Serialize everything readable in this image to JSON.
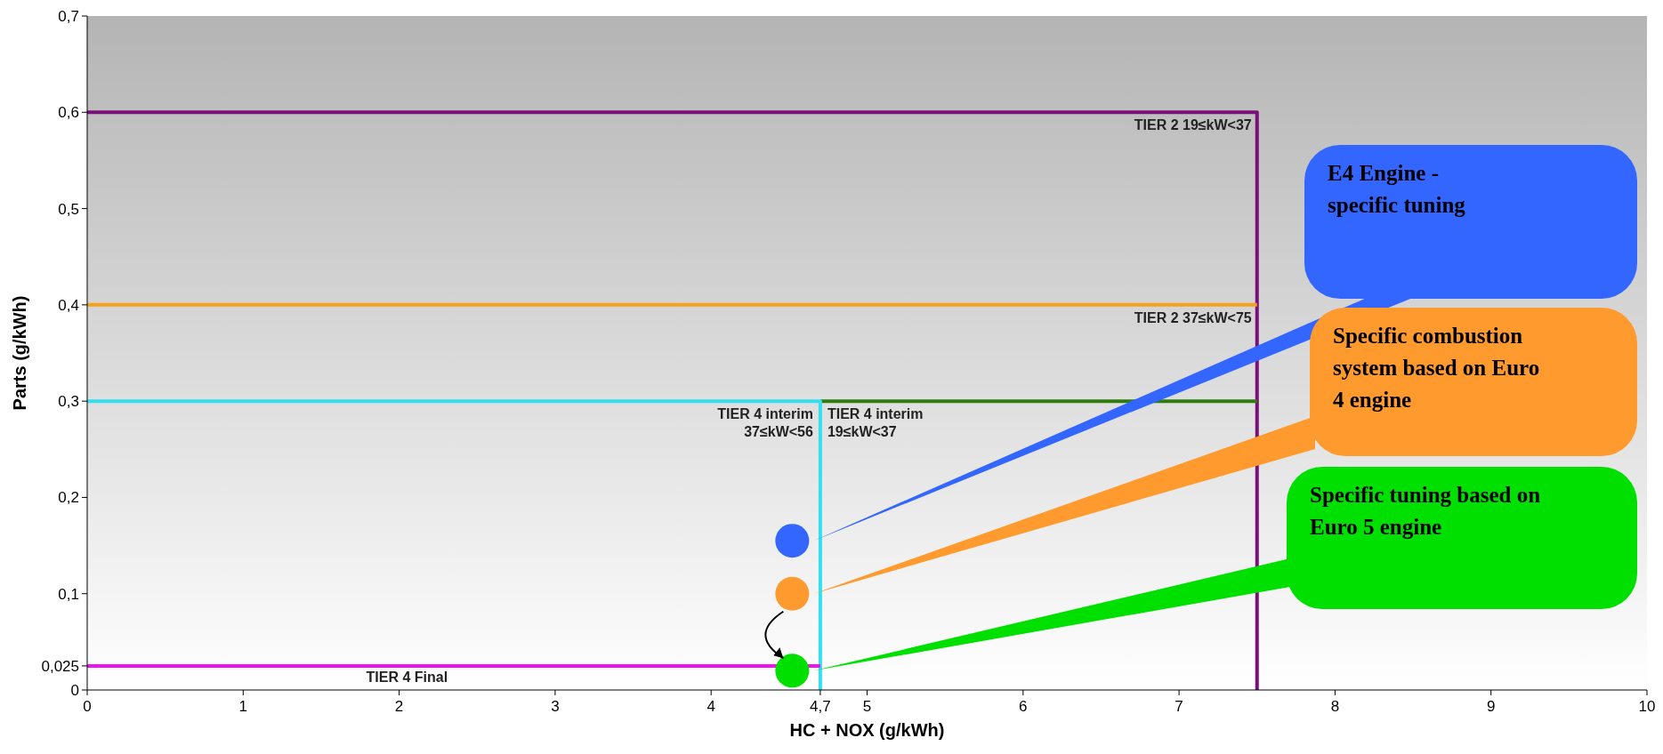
{
  "chart_data": {
    "type": "line",
    "xlabel": "HC + NOX (g/kWh)",
    "ylabel": "Parts (g/kWh)",
    "xlim": [
      0,
      10
    ],
    "ylim": [
      0,
      0.7
    ],
    "xticks": [
      0,
      1,
      2,
      3,
      4,
      {
        "value": 4.7,
        "label": "4,7"
      },
      5,
      6,
      7,
      8,
      9,
      10
    ],
    "yticks": [
      0,
      {
        "value": 0.025,
        "label": "0,025"
      },
      {
        "value": 0.1,
        "label": "0,1"
      },
      {
        "value": 0.2,
        "label": "0,2"
      },
      {
        "value": 0.3,
        "label": "0,3"
      },
      {
        "value": 0.4,
        "label": "0,4"
      },
      {
        "value": 0.5,
        "label": "0,5"
      },
      {
        "value": 0.6,
        "label": "0,6"
      },
      {
        "value": 0.7,
        "label": "0,7"
      }
    ],
    "grid": false,
    "line_style": "solid",
    "series": [
      {
        "type": "line",
        "color": "#7a0f7a",
        "x": [
          0,
          7.5,
          7.5
        ],
        "values": [
          0.6,
          0.6,
          0
        ]
      },
      {
        "type": "line",
        "color": "#f7a11a",
        "x": [
          0,
          7.5
        ],
        "values": [
          0.4,
          0.4
        ]
      },
      {
        "type": "line",
        "color": "#2e7d0e",
        "x": [
          4.7,
          7.5
        ],
        "values": [
          0.3,
          0.3
        ]
      },
      {
        "type": "line",
        "color": "#33e0f0",
        "x": [
          0,
          4.7,
          4.7
        ],
        "values": [
          0.3,
          0.3,
          0
        ]
      },
      {
        "type": "line",
        "color": "#f010f0",
        "x": [
          0,
          4.7
        ],
        "values": [
          0.025,
          0.025
        ]
      },
      {
        "type": "scatter",
        "name": "E4 Engine - specific tuning",
        "color": "#3366ff",
        "x": [
          4.52
        ],
        "values": [
          0.155
        ]
      },
      {
        "type": "scatter",
        "name": "Specific combustion system based on Euro 4 engine",
        "color": "#ff9a2e",
        "x": [
          4.52
        ],
        "values": [
          0.1
        ]
      },
      {
        "type": "scatter",
        "name": "Specific tuning based on Euro 5 engine",
        "color": "#00e000",
        "x": [
          4.52
        ],
        "values": [
          0.02
        ]
      }
    ],
    "annotations": [
      {
        "text": "TIER 2 19≤kW<37",
        "x": 7.5,
        "y": 0.6
      },
      {
        "text": "TIER 2 37≤kW<75",
        "x": 7.5,
        "y": 0.4
      },
      {
        "text": "TIER 4 interim\n37≤kW<56",
        "x": 4.7,
        "y": 0.3
      },
      {
        "text": "TIER 4 interim\n19≤kW<37",
        "x": 4.7,
        "y": 0.3
      },
      {
        "text": "TIER 4 Final",
        "x": 2.05,
        "y": 0.025
      }
    ]
  }
}
